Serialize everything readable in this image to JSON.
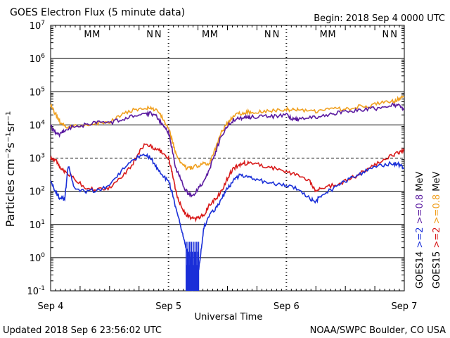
{
  "header": {
    "title": "GOES Electron Flux (5 minute data)",
    "begin": "Begin: 2018 Sep 4 0000 UTC"
  },
  "footer": {
    "updated": "Updated 2018 Sep  6 23:56:02 UTC",
    "credit": "NOAA/SWPC Boulder, CO USA"
  },
  "markers": {
    "M": "M",
    "N": "N",
    "blue_color": "#1a2fd8",
    "red_color": "#d81a1a"
  },
  "chart_data": {
    "type": "line",
    "title": "GOES Electron Flux (5 minute data)",
    "xlabel": "Universal Time",
    "ylabel": "Particles cm⁻²s⁻¹sr⁻¹",
    "x_unit": "day since 2018 Sep 4 0000 UTC",
    "xlim": [
      0,
      3
    ],
    "x_ticks": [
      {
        "value": 0,
        "label": "Sep 4"
      },
      {
        "value": 1,
        "label": "Sep 5"
      },
      {
        "value": 2,
        "label": "Sep 6"
      },
      {
        "value": 3,
        "label": "Sep 7"
      }
    ],
    "y_scale": "log",
    "ylim_exp": [
      -1,
      7
    ],
    "y_ticks": [
      {
        "exp": 7,
        "base": "10",
        "sup": "7"
      },
      {
        "exp": 6,
        "base": "10",
        "sup": "6"
      },
      {
        "exp": 5,
        "base": "10",
        "sup": "5"
      },
      {
        "exp": 4,
        "base": "10",
        "sup": "4"
      },
      {
        "exp": 3,
        "base": "10",
        "sup": "3"
      },
      {
        "exp": 2,
        "base": "10",
        "sup": "2"
      },
      {
        "exp": 1,
        "base": "10",
        "sup": "1"
      },
      {
        "exp": 0,
        "base": "10",
        "sup": "0"
      },
      {
        "exp": -1,
        "base": "10",
        "sup": "-1"
      }
    ],
    "dashed_threshold_exp": 3,
    "legend": [
      {
        "text": "GOES14  >=2  >=0.8  MeV",
        "satellite": "GOES14",
        "a": ">=2",
        "b": ">=0.8",
        "unit": "MeV",
        "color_a": "#1a2fd8",
        "color_b": "#5a1aa0"
      },
      {
        "text": "GOES15  >=2  >=0.8  MeV",
        "satellite": "GOES15",
        "a": ">=2",
        "b": ">=0.8",
        "unit": "MeV",
        "color_a": "#d81a1a",
        "color_b": "#f0a020"
      }
    ],
    "marker_rows": [
      {
        "day": 0,
        "items": [
          "M",
          "M",
          "N",
          "N"
        ]
      },
      {
        "day": 1,
        "items": [
          "M",
          "M",
          "N",
          "N"
        ]
      },
      {
        "day": 2,
        "items": [
          "M",
          "M",
          "N",
          "N"
        ]
      }
    ],
    "series": [
      {
        "name": "GOES15 >=0.8 MeV",
        "color": "#f0a020",
        "x": [
          0,
          0.04,
          0.08,
          0.12,
          0.2,
          0.3,
          0.4,
          0.5,
          0.6,
          0.7,
          0.8,
          0.85,
          0.9,
          0.95,
          1.0,
          1.03,
          1.06,
          1.1,
          1.15,
          1.2,
          1.25,
          1.3,
          1.35,
          1.4,
          1.45,
          1.5,
          1.55,
          1.6,
          1.65,
          1.7,
          1.8,
          1.9,
          2.0,
          2.05,
          2.1,
          2.2,
          2.3,
          2.4,
          2.5,
          2.6,
          2.7,
          2.8,
          2.9,
          2.95,
          3.0
        ],
        "y": [
          40000,
          22000,
          12000,
          9000,
          9000,
          10000,
          11000,
          12000,
          20000,
          28000,
          30000,
          33000,
          27000,
          16000,
          8000,
          3500,
          1500,
          800,
          500,
          500,
          600,
          700,
          700,
          2000,
          6000,
          11000,
          18000,
          22000,
          24000,
          25000,
          26000,
          27000,
          30000,
          28000,
          30000,
          25000,
          27000,
          30000,
          30000,
          35000,
          38000,
          45000,
          50000,
          60000,
          70000
        ]
      },
      {
        "name": "GOES14 >=0.8 MeV",
        "color": "#5a1aa0",
        "x": [
          0,
          0.04,
          0.08,
          0.12,
          0.2,
          0.3,
          0.4,
          0.5,
          0.6,
          0.7,
          0.8,
          0.85,
          0.9,
          0.95,
          1.0,
          1.03,
          1.06,
          1.1,
          1.15,
          1.2,
          1.25,
          1.3,
          1.35,
          1.4,
          1.45,
          1.5,
          1.55,
          1.6,
          1.65,
          1.7,
          1.8,
          1.9,
          2.0,
          2.05,
          2.1,
          2.2,
          2.3,
          2.4,
          2.5,
          2.6,
          2.7,
          2.8,
          2.9,
          2.95,
          3.0
        ],
        "y": [
          9000,
          6000,
          5000,
          7000,
          9000,
          10000,
          12000,
          11000,
          15000,
          18000,
          22000,
          22000,
          18000,
          10000,
          6000,
          2000,
          500,
          250,
          100,
          70,
          120,
          200,
          500,
          1500,
          5000,
          9000,
          14000,
          16000,
          17000,
          17000,
          18000,
          18000,
          20000,
          15000,
          15000,
          16000,
          18000,
          22000,
          25000,
          28000,
          30000,
          32000,
          40000,
          38000,
          30000
        ]
      },
      {
        "name": "GOES15 >=2 MeV",
        "color": "#d81a1a",
        "x": [
          0,
          0.04,
          0.08,
          0.12,
          0.2,
          0.3,
          0.4,
          0.5,
          0.6,
          0.7,
          0.75,
          0.8,
          0.85,
          0.9,
          0.95,
          1.0,
          1.03,
          1.06,
          1.1,
          1.15,
          1.2,
          1.25,
          1.3,
          1.35,
          1.4,
          1.45,
          1.5,
          1.55,
          1.6,
          1.65,
          1.7,
          1.8,
          1.9,
          2.0,
          2.1,
          2.2,
          2.25,
          2.3,
          2.4,
          2.5,
          2.6,
          2.7,
          2.8,
          2.9,
          2.95,
          3.0
        ],
        "y": [
          1000,
          900,
          500,
          400,
          250,
          120,
          110,
          130,
          250,
          700,
          1500,
          2500,
          2300,
          1800,
          1500,
          1000,
          400,
          100,
          40,
          20,
          15,
          15,
          20,
          40,
          60,
          100,
          250,
          500,
          600,
          700,
          700,
          600,
          500,
          400,
          300,
          200,
          100,
          130,
          150,
          200,
          300,
          500,
          800,
          1200,
          1500,
          1800
        ]
      },
      {
        "name": "GOES14 >=2 MeV",
        "color": "#1a2fd8",
        "x": [
          0,
          0.04,
          0.08,
          0.12,
          0.15,
          0.2,
          0.3,
          0.4,
          0.5,
          0.6,
          0.7,
          0.8,
          0.85,
          0.9,
          0.95,
          1.0,
          1.03,
          1.06,
          1.1,
          1.12,
          1.15,
          1.18,
          1.2,
          1.22,
          1.25,
          1.28,
          1.3,
          1.35,
          1.4,
          1.45,
          1.5,
          1.55,
          1.6,
          1.65,
          1.7,
          1.8,
          1.9,
          2.0,
          2.1,
          2.2,
          2.25,
          2.3,
          2.4,
          2.5,
          2.6,
          2.7,
          2.8,
          2.9,
          2.95,
          3.0
        ],
        "y": [
          200,
          100,
          60,
          60,
          600,
          120,
          100,
          110,
          150,
          400,
          900,
          1300,
          1000,
          500,
          300,
          200,
          100,
          30,
          10,
          5,
          2,
          1,
          0.1,
          0.15,
          0.3,
          2,
          8,
          20,
          30,
          60,
          120,
          200,
          300,
          300,
          250,
          200,
          170,
          150,
          120,
          60,
          50,
          80,
          120,
          200,
          300,
          450,
          600,
          700,
          650,
          500
        ]
      }
    ]
  }
}
